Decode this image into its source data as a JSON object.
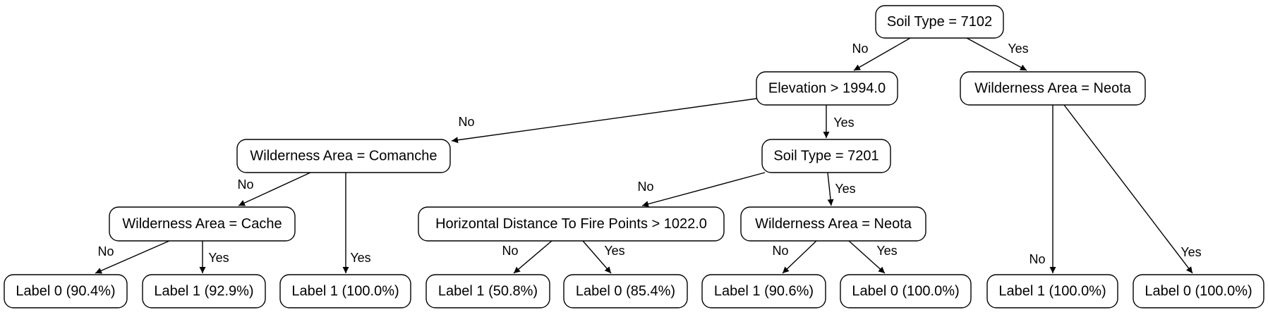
{
  "nodes": [
    {
      "id": "n0",
      "label": "Soil Type = 7102"
    },
    {
      "id": "n1",
      "label": "Elevation > 1994.0"
    },
    {
      "id": "n2",
      "label": "Wilderness Area = Neota"
    },
    {
      "id": "n3",
      "label": "Wilderness Area = Comanche"
    },
    {
      "id": "n4",
      "label": "Soil Type = 7201"
    },
    {
      "id": "n5",
      "label": "Wilderness Area = Cache"
    },
    {
      "id": "n6",
      "label": "Horizontal Distance To Fire Points > 1022.0"
    },
    {
      "id": "n7",
      "label": "Wilderness Area = Neota"
    },
    {
      "id": "n8",
      "label": "Label 0 (90.4%)"
    },
    {
      "id": "n9",
      "label": "Label 1 (92.9%)"
    },
    {
      "id": "n10",
      "label": "Label 1 (100.0%)"
    },
    {
      "id": "n11",
      "label": "Label 1 (50.8%)"
    },
    {
      "id": "n12",
      "label": "Label 0 (85.4%)"
    },
    {
      "id": "n13",
      "label": "Label 1 (90.6%)"
    },
    {
      "id": "n14",
      "label": "Label 0 (100.0%)"
    },
    {
      "id": "n15",
      "label": "Label 1 (100.0%)"
    },
    {
      "id": "n16",
      "label": "Label 0 (100.0%)"
    }
  ],
  "edges": [
    {
      "from": "n0",
      "to": "n1",
      "label": "No"
    },
    {
      "from": "n0",
      "to": "n2",
      "label": "Yes"
    },
    {
      "from": "n1",
      "to": "n3",
      "label": "No"
    },
    {
      "from": "n1",
      "to": "n4",
      "label": "Yes"
    },
    {
      "from": "n3",
      "to": "n5",
      "label": "No"
    },
    {
      "from": "n3",
      "to": "n10",
      "label": "Yes"
    },
    {
      "from": "n5",
      "to": "n8",
      "label": "No"
    },
    {
      "from": "n5",
      "to": "n9",
      "label": "Yes"
    },
    {
      "from": "n4",
      "to": "n6",
      "label": "No"
    },
    {
      "from": "n4",
      "to": "n7",
      "label": "Yes"
    },
    {
      "from": "n6",
      "to": "n11",
      "label": "No"
    },
    {
      "from": "n6",
      "to": "n12",
      "label": "Yes"
    },
    {
      "from": "n7",
      "to": "n13",
      "label": "No"
    },
    {
      "from": "n7",
      "to": "n14",
      "label": "Yes"
    },
    {
      "from": "n2",
      "to": "n15",
      "label": "No"
    },
    {
      "from": "n2",
      "to": "n16",
      "label": "Yes"
    }
  ]
}
